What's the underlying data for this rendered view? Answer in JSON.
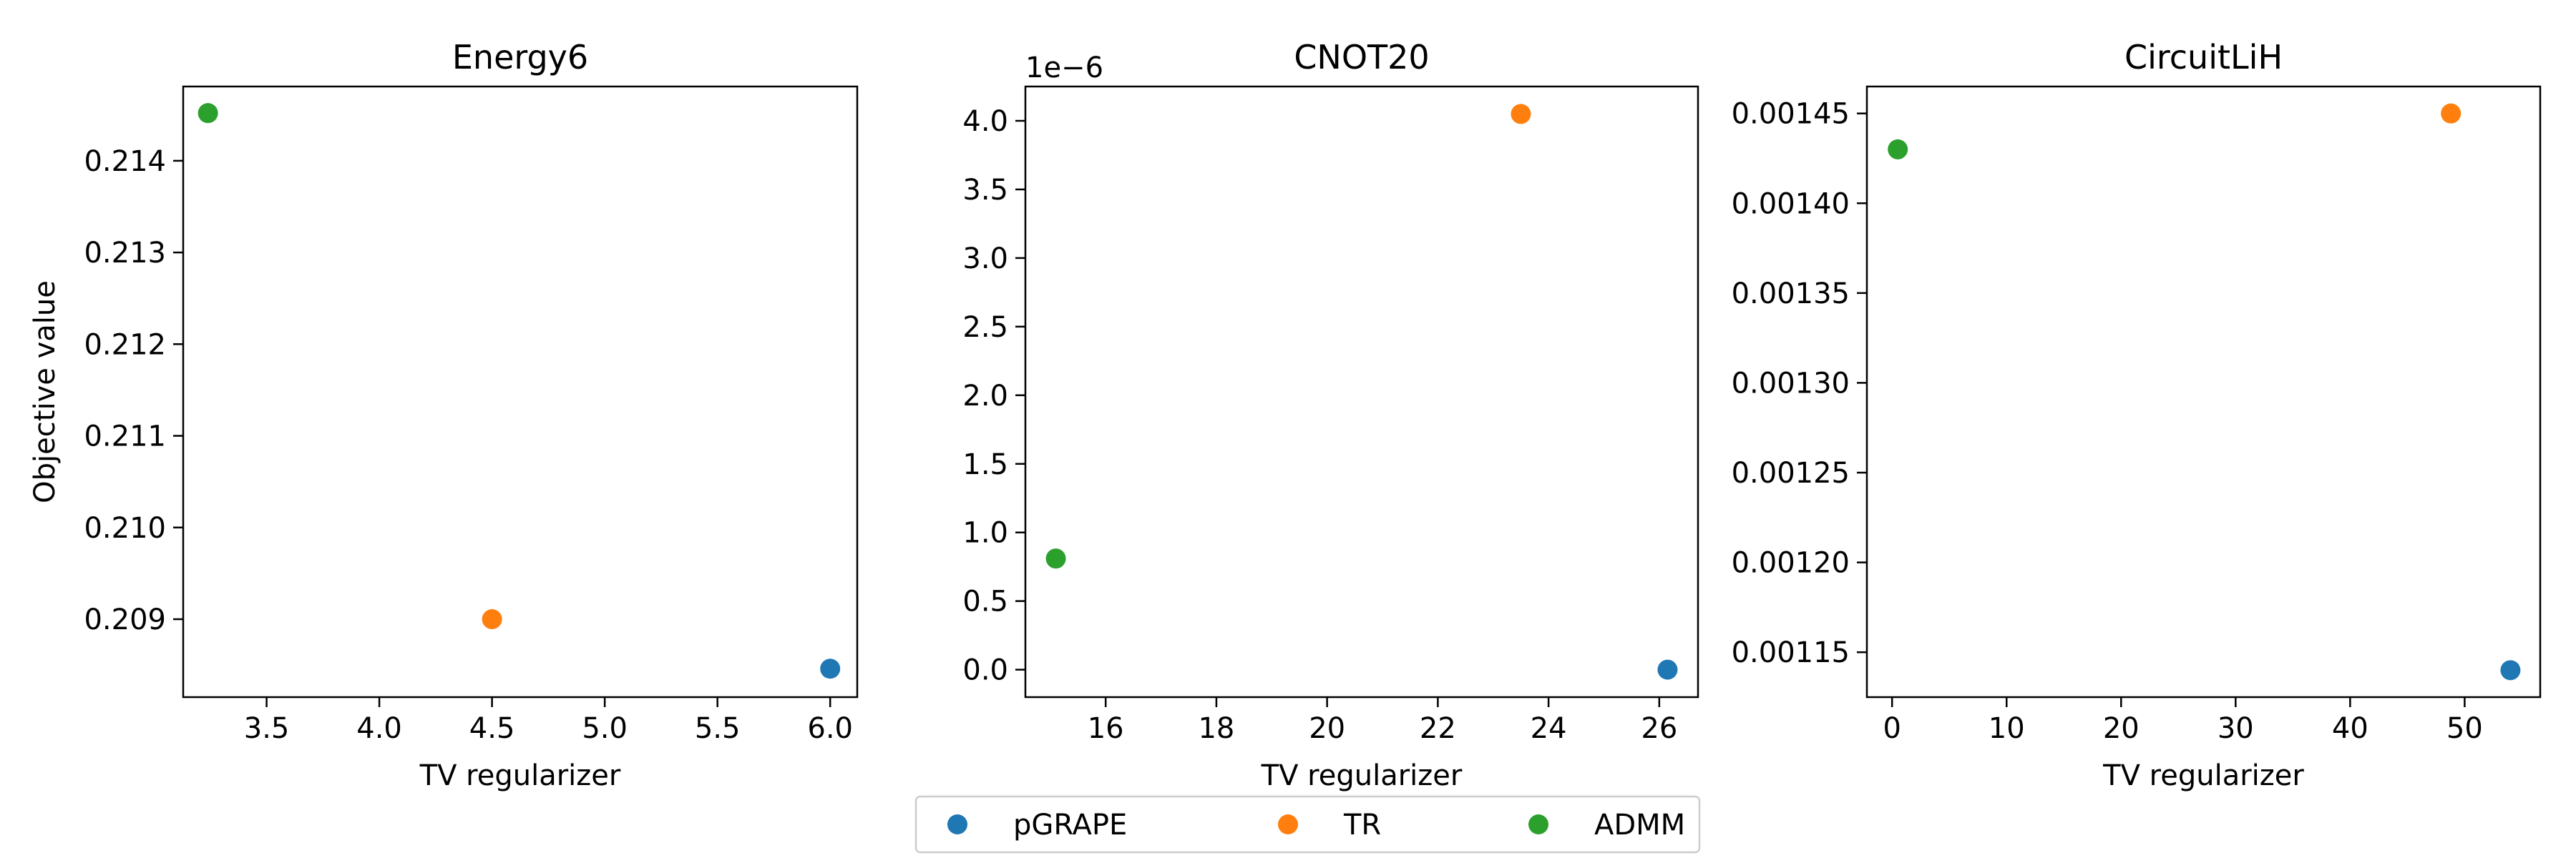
{
  "chart_data": [
    {
      "type": "scatter",
      "title": "Energy6",
      "xlabel": "TV regularizer",
      "ylabel": "Objective value",
      "xlim": [
        3.13,
        6.12
      ],
      "ylim": [
        0.20815,
        0.21481
      ],
      "xticks": [
        "3.5",
        "4.0",
        "4.5",
        "5.0",
        "5.5",
        "6.0"
      ],
      "xtick_values": [
        3.5,
        4.0,
        4.5,
        5.0,
        5.5,
        6.0
      ],
      "yticks": [
        "0.209",
        "0.210",
        "0.211",
        "0.212",
        "0.213",
        "0.214"
      ],
      "ytick_values": [
        0.209,
        0.21,
        0.211,
        0.212,
        0.213,
        0.214
      ],
      "offset_label": "",
      "grid": false,
      "series": [
        {
          "name": "pGRAPE",
          "x": [
            6.0
          ],
          "y": [
            0.20846
          ]
        },
        {
          "name": "TR",
          "x": [
            4.5
          ],
          "y": [
            0.209
          ]
        },
        {
          "name": "ADMM",
          "x": [
            3.24
          ],
          "y": [
            0.21452
          ]
        }
      ]
    },
    {
      "type": "scatter",
      "title": "CNOT20",
      "xlabel": "TV regularizer",
      "ylabel": "",
      "xlim": [
        14.55,
        26.7
      ],
      "ylim": [
        -0.2,
        4.25
      ],
      "xticks": [
        "16",
        "18",
        "20",
        "22",
        "24",
        "26"
      ],
      "xtick_values": [
        16,
        18,
        20,
        22,
        24,
        26
      ],
      "yticks": [
        "0.0",
        "0.5",
        "1.0",
        "1.5",
        "2.0",
        "2.5",
        "3.0",
        "3.5",
        "4.0"
      ],
      "ytick_values": [
        0.0,
        0.5,
        1.0,
        1.5,
        2.0,
        2.5,
        3.0,
        3.5,
        4.0
      ],
      "offset_label": "1e−6",
      "grid": false,
      "series": [
        {
          "name": "pGRAPE",
          "x": [
            26.15
          ],
          "y": [
            0.0
          ]
        },
        {
          "name": "TR",
          "x": [
            23.5
          ],
          "y": [
            4.05
          ]
        },
        {
          "name": "ADMM",
          "x": [
            15.1
          ],
          "y": [
            0.81
          ]
        }
      ]
    },
    {
      "type": "scatter",
      "title": "CircuitLiH",
      "xlabel": "TV regularizer",
      "ylabel": "",
      "xlim": [
        -2.2,
        56.6
      ],
      "ylim": [
        0.001125,
        0.001465
      ],
      "xticks": [
        "0",
        "10",
        "20",
        "30",
        "40",
        "50"
      ],
      "xtick_values": [
        0,
        10,
        20,
        30,
        40,
        50
      ],
      "yticks": [
        "0.00115",
        "0.00120",
        "0.00125",
        "0.00130",
        "0.00135",
        "0.00140",
        "0.00145"
      ],
      "ytick_values": [
        0.00115,
        0.0012,
        0.00125,
        0.0013,
        0.00135,
        0.0014,
        0.00145
      ],
      "offset_label": "",
      "grid": false,
      "series": [
        {
          "name": "pGRAPE",
          "x": [
            54.0
          ],
          "y": [
            0.00114
          ]
        },
        {
          "name": "TR",
          "x": [
            48.8
          ],
          "y": [
            0.00145
          ]
        },
        {
          "name": "ADMM",
          "x": [
            0.5
          ],
          "y": [
            0.00143
          ]
        }
      ]
    }
  ],
  "legend": {
    "placement": "bottom-center",
    "entries": [
      {
        "name": "pGRAPE",
        "color": "#1f77b4"
      },
      {
        "name": "TR",
        "color": "#ff7f0e"
      },
      {
        "name": "ADMM",
        "color": "#2ca02c"
      }
    ]
  },
  "colors": {
    "pGRAPE": "#1f77b4",
    "TR": "#ff7f0e",
    "ADMM": "#2ca02c"
  }
}
